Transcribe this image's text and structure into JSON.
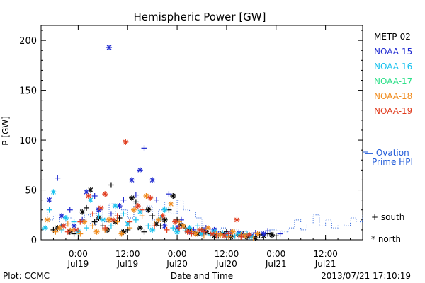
{
  "chart_data": {
    "type": "scatter",
    "title": "Hemispheric Power [GW]",
    "ylabel": "P [GW]",
    "xlabel": "Date and Time",
    "ylim": [
      0,
      215
    ],
    "xlim_hours": "2013-07-18 15:00 to 2013-07-21 21:00",
    "yticks": [
      0,
      50,
      100,
      150,
      200
    ],
    "xticks": [
      {
        "time": "2013-07-19 00:00",
        "line1": "0:00",
        "line2": "Jul19"
      },
      {
        "time": "2013-07-19 12:00",
        "line1": "12:00",
        "line2": "Jul19"
      },
      {
        "time": "2013-07-20 00:00",
        "line1": "0:00",
        "line2": "Jul20"
      },
      {
        "time": "2013-07-20 12:00",
        "line1": "12:00",
        "line2": "Jul20"
      },
      {
        "time": "2013-07-21 00:00",
        "line1": "0:00",
        "line2": "Jul21"
      },
      {
        "time": "2013-07-21 12:00",
        "line1": "12:00",
        "line2": "Jul21"
      }
    ],
    "legend": [
      {
        "name": "METP-02",
        "color": "#000000"
      },
      {
        "name": "NOAA-15",
        "color": "#1f2ad0"
      },
      {
        "name": "NOAA-16",
        "color": "#19c2ee"
      },
      {
        "name": "NOAA-17",
        "color": "#2fe08a"
      },
      {
        "name": "NOAA-18",
        "color": "#f08c1e"
      },
      {
        "name": "NOAA-19",
        "color": "#e03c1e"
      }
    ],
    "ovation_label_line1": "— Ovation",
    "ovation_label_line2": "Prime HPI",
    "ovation_color": "#1f5ad8",
    "marker_legend": {
      "south": "+ south",
      "north": "* north"
    },
    "ovation": [
      [
        "2013-07-18 15:00",
        28
      ],
      [
        "2013-07-18 16:30",
        20
      ],
      [
        "2013-07-18 18:00",
        24
      ],
      [
        "2013-07-18 19:30",
        15
      ],
      [
        "2013-07-18 21:00",
        22
      ],
      [
        "2013-07-18 22:30",
        12
      ],
      [
        "2013-07-19 00:00",
        18
      ],
      [
        "2013-07-19 01:30",
        25
      ],
      [
        "2013-07-19 03:00",
        15
      ],
      [
        "2013-07-19 04:30",
        30
      ],
      [
        "2013-07-19 06:00",
        18
      ],
      [
        "2013-07-19 07:30",
        36
      ],
      [
        "2013-07-19 09:00",
        24
      ],
      [
        "2013-07-19 10:30",
        30
      ],
      [
        "2013-07-19 12:00",
        22
      ],
      [
        "2013-07-19 13:30",
        36
      ],
      [
        "2013-07-19 15:00",
        28
      ],
      [
        "2013-07-19 16:30",
        34
      ],
      [
        "2013-07-19 18:00",
        20
      ],
      [
        "2013-07-19 19:30",
        30
      ],
      [
        "2013-07-19 21:00",
        38
      ],
      [
        "2013-07-19 22:30",
        26
      ],
      [
        "2013-07-20 00:00",
        40
      ],
      [
        "2013-07-20 01:30",
        30
      ],
      [
        "2013-07-20 03:00",
        28
      ],
      [
        "2013-07-20 04:30",
        22
      ],
      [
        "2013-07-20 06:00",
        14
      ],
      [
        "2013-07-20 07:30",
        10
      ],
      [
        "2013-07-20 09:00",
        8
      ],
      [
        "2013-07-20 10:30",
        12
      ],
      [
        "2013-07-20 12:00",
        7
      ],
      [
        "2013-07-20 13:30",
        10
      ],
      [
        "2013-07-20 15:00",
        6
      ],
      [
        "2013-07-20 16:30",
        9
      ],
      [
        "2013-07-20 18:00",
        5
      ],
      [
        "2013-07-20 19:30",
        8
      ],
      [
        "2013-07-20 21:00",
        6
      ],
      [
        "2013-07-20 22:30",
        10
      ],
      [
        "2013-07-21 00:00",
        9
      ],
      [
        "2013-07-21 01:30",
        8
      ],
      [
        "2013-07-21 03:00",
        12
      ],
      [
        "2013-07-21 04:30",
        20
      ],
      [
        "2013-07-21 06:00",
        10
      ],
      [
        "2013-07-21 07:30",
        16
      ],
      [
        "2013-07-21 09:00",
        25
      ],
      [
        "2013-07-21 10:30",
        14
      ],
      [
        "2013-07-21 12:00",
        20
      ],
      [
        "2013-07-21 13:30",
        12
      ],
      [
        "2013-07-21 15:00",
        16
      ],
      [
        "2013-07-21 16:30",
        14
      ],
      [
        "2013-07-21 18:00",
        22
      ],
      [
        "2013-07-21 19:30",
        18
      ],
      [
        "2013-07-21 21:00",
        25
      ]
    ],
    "series": [
      {
        "sat": "METP-02",
        "hemi": "north",
        "points": [
          [
            "2013-07-18 19:00",
            12
          ],
          [
            "2013-07-18 22:00",
            8
          ],
          [
            "2013-07-19 01:00",
            28
          ],
          [
            "2013-07-19 03:00",
            50
          ],
          [
            "2013-07-19 05:00",
            22
          ],
          [
            "2013-07-19 07:00",
            10
          ],
          [
            "2013-07-19 09:00",
            18
          ],
          [
            "2013-07-19 11:00",
            8
          ],
          [
            "2013-07-19 13:00",
            42
          ],
          [
            "2013-07-19 15:00",
            12
          ],
          [
            "2013-07-19 17:00",
            30
          ],
          [
            "2013-07-19 19:00",
            16
          ],
          [
            "2013-07-19 21:00",
            20
          ],
          [
            "2013-07-19 23:00",
            44
          ],
          [
            "2013-07-20 01:00",
            15
          ],
          [
            "2013-07-20 03:00",
            10
          ],
          [
            "2013-07-20 05:00",
            6
          ],
          [
            "2013-07-20 07:00",
            8
          ],
          [
            "2013-07-20 09:00",
            4
          ],
          [
            "2013-07-20 11:00",
            6
          ],
          [
            "2013-07-20 13:00",
            3
          ],
          [
            "2013-07-20 15:00",
            5
          ],
          [
            "2013-07-20 17:00",
            3
          ],
          [
            "2013-07-20 19:00",
            2
          ],
          [
            "2013-07-20 21:00",
            4
          ],
          [
            "2013-07-20 23:00",
            5
          ]
        ]
      },
      {
        "sat": "METP-02",
        "hemi": "south",
        "points": [
          [
            "2013-07-18 18:00",
            10
          ],
          [
            "2013-07-18 20:00",
            14
          ],
          [
            "2013-07-18 23:00",
            6
          ],
          [
            "2013-07-19 02:00",
            32
          ],
          [
            "2013-07-19 04:00",
            18
          ],
          [
            "2013-07-19 06:00",
            14
          ],
          [
            "2013-07-19 08:00",
            55
          ],
          [
            "2013-07-19 10:00",
            22
          ],
          [
            "2013-07-19 12:00",
            10
          ],
          [
            "2013-07-19 14:00",
            38
          ],
          [
            "2013-07-19 16:00",
            8
          ],
          [
            "2013-07-19 18:00",
            24
          ],
          [
            "2013-07-19 20:00",
            14
          ],
          [
            "2013-07-19 22:00",
            30
          ],
          [
            "2013-07-20 00:00",
            20
          ],
          [
            "2013-07-20 02:00",
            12
          ],
          [
            "2013-07-20 04:00",
            8
          ],
          [
            "2013-07-20 06:00",
            10
          ],
          [
            "2013-07-20 08:00",
            6
          ],
          [
            "2013-07-20 10:00",
            4
          ],
          [
            "2013-07-20 12:00",
            8
          ],
          [
            "2013-07-20 14:00",
            4
          ],
          [
            "2013-07-20 16:00",
            6
          ],
          [
            "2013-07-20 18:00",
            3
          ],
          [
            "2013-07-20 20:00",
            5
          ],
          [
            "2013-07-20 22:00",
            6
          ],
          [
            "2013-07-21 00:00",
            4
          ]
        ]
      },
      {
        "sat": "NOAA-15",
        "hemi": "north",
        "points": [
          [
            "2013-07-18 17:00",
            40
          ],
          [
            "2013-07-18 20:00",
            24
          ],
          [
            "2013-07-18 23:00",
            14
          ],
          [
            "2013-07-19 02:00",
            48
          ],
          [
            "2013-07-19 05:00",
            30
          ],
          [
            "2013-07-19 07:30",
            193
          ],
          [
            "2013-07-19 10:00",
            34
          ],
          [
            "2013-07-19 13:00",
            60
          ],
          [
            "2013-07-19 15:00",
            70
          ],
          [
            "2013-07-19 18:00",
            60
          ],
          [
            "2013-07-19 21:00",
            14
          ],
          [
            "2013-07-20 00:00",
            12
          ],
          [
            "2013-07-20 03:00",
            8
          ],
          [
            "2013-07-20 06:00",
            6
          ],
          [
            "2013-07-20 09:00",
            10
          ],
          [
            "2013-07-20 12:00",
            5
          ],
          [
            "2013-07-20 15:00",
            7
          ],
          [
            "2013-07-20 18:00",
            4
          ],
          [
            "2013-07-20 21:00",
            6
          ]
        ]
      },
      {
        "sat": "NOAA-15",
        "hemi": "south",
        "points": [
          [
            "2013-07-18 19:00",
            62
          ],
          [
            "2013-07-18 22:00",
            30
          ],
          [
            "2013-07-19 01:00",
            20
          ],
          [
            "2013-07-19 04:00",
            44
          ],
          [
            "2013-07-19 08:00",
            26
          ],
          [
            "2013-07-19 11:00",
            40
          ],
          [
            "2013-07-19 14:00",
            45
          ],
          [
            "2013-07-19 16:00",
            92
          ],
          [
            "2013-07-19 19:00",
            40
          ],
          [
            "2013-07-19 22:00",
            46
          ],
          [
            "2013-07-20 01:00",
            20
          ],
          [
            "2013-07-20 04:00",
            10
          ],
          [
            "2013-07-20 07:00",
            12
          ],
          [
            "2013-07-20 10:00",
            6
          ],
          [
            "2013-07-20 13:00",
            8
          ],
          [
            "2013-07-20 16:00",
            5
          ],
          [
            "2013-07-20 19:00",
            7
          ],
          [
            "2013-07-20 22:00",
            9
          ],
          [
            "2013-07-21 01:00",
            6
          ]
        ]
      },
      {
        "sat": "NOAA-16",
        "hemi": "north",
        "points": [
          [
            "2013-07-18 16:00",
            12
          ],
          [
            "2013-07-18 18:00",
            48
          ],
          [
            "2013-07-18 21:00",
            22
          ],
          [
            "2013-07-19 00:00",
            8
          ],
          [
            "2013-07-19 03:00",
            40
          ],
          [
            "2013-07-19 06:00",
            20
          ],
          [
            "2013-07-19 09:00",
            34
          ],
          [
            "2013-07-19 12:00",
            16
          ],
          [
            "2013-07-19 15:00",
            28
          ],
          [
            "2013-07-19 18:00",
            10
          ],
          [
            "2013-07-19 21:00",
            30
          ],
          [
            "2013-07-20 00:00",
            8
          ],
          [
            "2013-07-20 03:00",
            12
          ],
          [
            "2013-07-20 06:00",
            6
          ],
          [
            "2013-07-20 09:00",
            8
          ],
          [
            "2013-07-20 12:00",
            4
          ],
          [
            "2013-07-20 15:00",
            6
          ],
          [
            "2013-07-20 18:00",
            3
          ]
        ]
      },
      {
        "sat": "NOAA-16",
        "hemi": "south",
        "points": [
          [
            "2013-07-18 17:00",
            30
          ],
          [
            "2013-07-18 20:00",
            10
          ],
          [
            "2013-07-18 23:00",
            18
          ],
          [
            "2013-07-19 02:00",
            12
          ],
          [
            "2013-07-19 05:00",
            24
          ],
          [
            "2013-07-19 08:00",
            14
          ],
          [
            "2013-07-19 11:00",
            26
          ],
          [
            "2013-07-19 14:00",
            20
          ],
          [
            "2013-07-19 17:00",
            14
          ],
          [
            "2013-07-19 20:00",
            22
          ],
          [
            "2013-07-19 23:00",
            12
          ],
          [
            "2013-07-20 02:00",
            9
          ],
          [
            "2013-07-20 05:00",
            14
          ],
          [
            "2013-07-20 08:00",
            5
          ],
          [
            "2013-07-20 11:00",
            7
          ],
          [
            "2013-07-20 14:00",
            4
          ],
          [
            "2013-07-20 17:00",
            6
          ]
        ]
      },
      {
        "sat": "NOAA-18",
        "hemi": "north",
        "points": [
          [
            "2013-07-18 16:30",
            20
          ],
          [
            "2013-07-18 19:30",
            12
          ],
          [
            "2013-07-18 22:30",
            10
          ],
          [
            "2013-07-19 01:30",
            18
          ],
          [
            "2013-07-19 04:30",
            8
          ],
          [
            "2013-07-19 07:30",
            20
          ],
          [
            "2013-07-19 10:30",
            6
          ],
          [
            "2013-07-19 13:30",
            30
          ],
          [
            "2013-07-19 16:30",
            44
          ],
          [
            "2013-07-19 19:30",
            20
          ],
          [
            "2013-07-19 22:30",
            36
          ],
          [
            "2013-07-20 01:30",
            14
          ],
          [
            "2013-07-20 04:30",
            6
          ],
          [
            "2013-07-20 07:30",
            12
          ],
          [
            "2013-07-20 10:30",
            5
          ],
          [
            "2013-07-20 13:30",
            8
          ],
          [
            "2013-07-20 16:30",
            4
          ],
          [
            "2013-07-20 19:30",
            6
          ]
        ]
      },
      {
        "sat": "NOAA-18",
        "hemi": "south",
        "points": [
          [
            "2013-07-18 18:30",
            8
          ],
          [
            "2013-07-18 21:30",
            16
          ],
          [
            "2013-07-19 00:30",
            6
          ],
          [
            "2013-07-19 03:30",
            14
          ],
          [
            "2013-07-19 06:30",
            10
          ],
          [
            "2013-07-19 09:30",
            18
          ],
          [
            "2013-07-19 12:30",
            12
          ],
          [
            "2013-07-19 15:30",
            24
          ],
          [
            "2013-07-19 18:30",
            16
          ],
          [
            "2013-07-19 21:30",
            10
          ],
          [
            "2013-07-20 00:30",
            18
          ],
          [
            "2013-07-20 03:30",
            8
          ],
          [
            "2013-07-20 06:30",
            4
          ],
          [
            "2013-07-20 09:30",
            6
          ],
          [
            "2013-07-20 12:30",
            3
          ],
          [
            "2013-07-20 15:30",
            5
          ],
          [
            "2013-07-20 18:30",
            2
          ]
        ]
      },
      {
        "sat": "NOAA-19",
        "hemi": "north",
        "points": [
          [
            "2013-07-18 20:30",
            14
          ],
          [
            "2013-07-18 23:30",
            10
          ],
          [
            "2013-07-19 02:30",
            44
          ],
          [
            "2013-07-19 05:30",
            32
          ],
          [
            "2013-07-19 06:30",
            46
          ],
          [
            "2013-07-19 08:30",
            20
          ],
          [
            "2013-07-19 11:30",
            98
          ],
          [
            "2013-07-19 14:30",
            34
          ],
          [
            "2013-07-19 17:30",
            42
          ],
          [
            "2013-07-19 20:30",
            24
          ],
          [
            "2013-07-19 23:30",
            18
          ],
          [
            "2013-07-20 02:30",
            8
          ],
          [
            "2013-07-20 05:30",
            10
          ],
          [
            "2013-07-20 08:30",
            6
          ],
          [
            "2013-07-20 11:30",
            4
          ],
          [
            "2013-07-20 14:30",
            20
          ],
          [
            "2013-07-20 17:30",
            5
          ]
        ]
      },
      {
        "sat": "NOAA-19",
        "hemi": "south",
        "points": [
          [
            "2013-07-18 21:30",
            8
          ],
          [
            "2013-07-19 00:30",
            18
          ],
          [
            "2013-07-19 03:30",
            26
          ],
          [
            "2013-07-19 06:30",
            12
          ],
          [
            "2013-07-19 09:30",
            24
          ],
          [
            "2013-07-19 12:30",
            18
          ],
          [
            "2013-07-19 15:30",
            30
          ],
          [
            "2013-07-19 18:30",
            14
          ],
          [
            "2013-07-19 21:30",
            10
          ],
          [
            "2013-07-20 00:30",
            12
          ],
          [
            "2013-07-20 03:30",
            6
          ],
          [
            "2013-07-20 06:30",
            8
          ],
          [
            "2013-07-20 09:30",
            4
          ],
          [
            "2013-07-20 12:30",
            6
          ],
          [
            "2013-07-20 15:30",
            3
          ]
        ]
      }
    ]
  },
  "footer": {
    "left": "Plot: CCMC",
    "right": "2013/07/21 17:10:19"
  }
}
